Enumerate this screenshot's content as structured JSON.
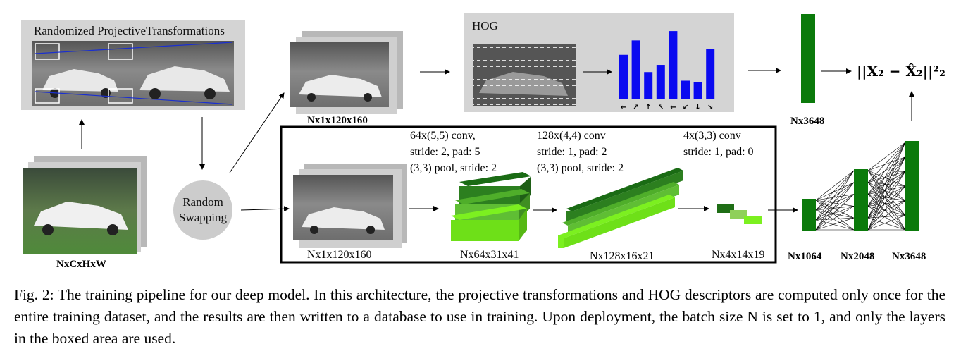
{
  "diagram": {
    "rand_proj_title": "Randomized ProjectiveTransformations",
    "input_label": "NxCxHxW",
    "random_swapping": [
      "Random",
      "Swapping"
    ],
    "top_patch_label": "Nx1x120x160",
    "bottom_patch_label": "Nx1x120x160",
    "hog_title": "HOG",
    "hog_bar_heights": [
      0.62,
      0.82,
      0.38,
      0.48,
      0.95,
      0.26,
      0.24,
      0.7
    ],
    "hog_arrow_glyphs": [
      "←",
      "↗",
      "↑",
      "↖",
      "←",
      "↙",
      "↓",
      "↘"
    ],
    "target_vector_label": "Nx3648",
    "loss_formula": "||X₂ − X̂₂||²₂",
    "conv1_text": [
      "64x(5,5) conv,",
      "stride: 2, pad: 5",
      "(3,3) pool, stride: 2"
    ],
    "conv2_text": [
      "128x(4,4) conv",
      "stride: 1, pad: 2",
      "(3,3) pool, stride: 2"
    ],
    "conv3_text": [
      "4x(3,3) conv",
      "stride: 1, pad: 0"
    ],
    "conv1_out": "Nx64x31x41",
    "conv2_out": "Nx128x16x21",
    "conv3_out": "Nx4x14x19",
    "fc_labels": [
      "Nx1064",
      "Nx2048",
      "Nx3648"
    ],
    "colors": {
      "hog_bar": "#0a0af0",
      "vector_green": "#0b7a0b",
      "layer_dark": "#1a6b14",
      "layer_mid": "#4fae2a",
      "layer_light": "#7cf020",
      "panel_gray": "#d4d4d4"
    }
  },
  "caption": "Fig. 2: The training pipeline for our deep model. In this architecture, the projective transformations and HOG descriptors are computed only once for the entire training dataset, and the results are then written to a database to use in training. Upon deployment, the batch size N is set to 1, and only the layers in the boxed area are used."
}
